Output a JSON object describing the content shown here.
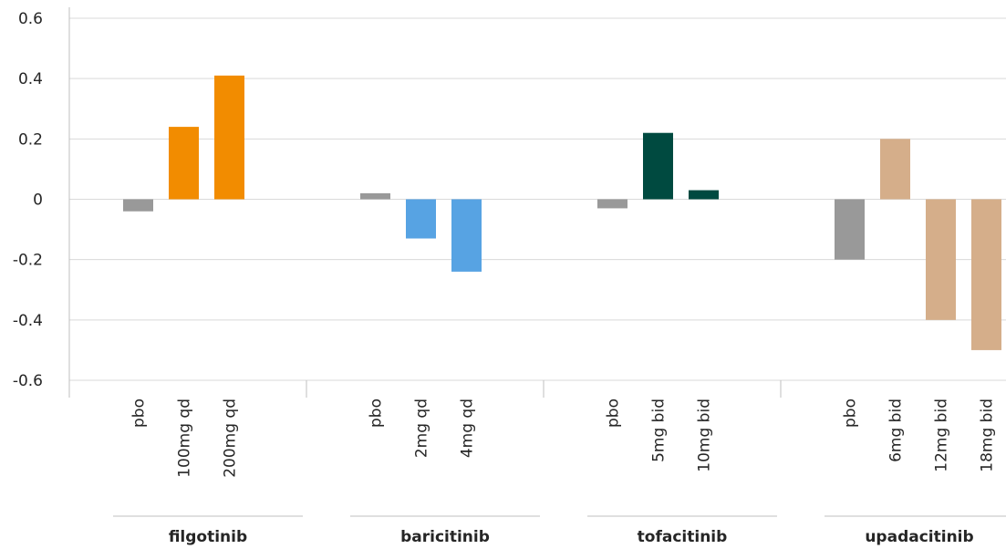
{
  "chart_data": {
    "type": "bar",
    "ylim": [
      -0.6,
      0.6
    ],
    "y_ticks": [
      "0.6",
      "0.4",
      "0.2",
      "0",
      "-0.2",
      "-0.4",
      "-0.6"
    ],
    "grid": true,
    "groups": [
      {
        "name": "filgotinib",
        "color": "#f28c00",
        "bars": [
          {
            "label": "pbo",
            "value": -0.04,
            "color": "#999999"
          },
          {
            "label": "100mg qd",
            "value": 0.24,
            "color": "#f28c00"
          },
          {
            "label": "200mg qd",
            "value": 0.41,
            "color": "#f28c00"
          }
        ]
      },
      {
        "name": "baricitinib",
        "color": "#57a3e3",
        "bars": [
          {
            "label": "pbo",
            "value": 0.02,
            "color": "#999999"
          },
          {
            "label": "2mg qd",
            "value": -0.13,
            "color": "#57a3e3"
          },
          {
            "label": "4mg qd",
            "value": -0.24,
            "color": "#57a3e3"
          }
        ]
      },
      {
        "name": "tofacitinib",
        "color": "#004a40",
        "bars": [
          {
            "label": "pbo",
            "value": -0.03,
            "color": "#999999"
          },
          {
            "label": "5mg bid",
            "value": 0.22,
            "color": "#004a40"
          },
          {
            "label": "10mg bid",
            "value": 0.03,
            "color": "#004a40"
          }
        ]
      },
      {
        "name": "upadacitinib",
        "color": "#d5ae8a",
        "bars": [
          {
            "label": "pbo",
            "value": -0.2,
            "color": "#999999"
          },
          {
            "label": "6mg bid",
            "value": 0.2,
            "color": "#d5ae8a"
          },
          {
            "label": "12mg bid",
            "value": -0.4,
            "color": "#d5ae8a"
          },
          {
            "label": "18mg bid",
            "value": -0.5,
            "color": "#d5ae8a"
          }
        ]
      }
    ]
  }
}
